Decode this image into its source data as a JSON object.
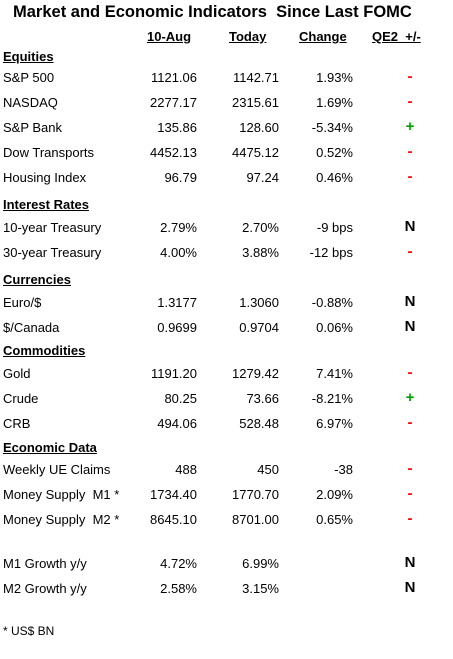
{
  "title": "Market and Economic Indicators  Since Last FOMC",
  "columns": {
    "a": "10-Aug",
    "b": "Today",
    "change": "Change",
    "signal": "QE2  +/-"
  },
  "colors": {
    "negative": "#ff0000",
    "positive": "#00a000",
    "neutral": "#000000"
  },
  "rows": [
    {
      "type": "section",
      "label": "Equities"
    },
    {
      "type": "data",
      "label": "S&P 500",
      "a": "1121.06",
      "b": "1142.71",
      "change": "1.93%",
      "signal": "-"
    },
    {
      "type": "data",
      "label": "NASDAQ",
      "a": "2277.17",
      "b": "2315.61",
      "change": "1.69%",
      "signal": "-"
    },
    {
      "type": "data",
      "label": "S&P Bank",
      "a": "135.86",
      "b": "128.60",
      "change": "-5.34%",
      "signal": "+"
    },
    {
      "type": "data",
      "label": "Dow Transports",
      "a": "4452.13",
      "b": "4475.12",
      "change": "0.52%",
      "signal": "-"
    },
    {
      "type": "data",
      "label": "Housing Index",
      "a": "96.79",
      "b": "97.24",
      "change": "0.46%",
      "signal": "-"
    },
    {
      "type": "section",
      "label": "Interest Rates"
    },
    {
      "type": "data",
      "label": "10-year Treasury",
      "a": "2.79%",
      "b": "2.70%",
      "change": "-9 bps",
      "signal": "N"
    },
    {
      "type": "data",
      "label": "30-year Treasury",
      "a": "4.00%",
      "b": "3.88%",
      "change": "-12 bps",
      "signal": "-"
    },
    {
      "type": "section",
      "label": "Currencies"
    },
    {
      "type": "data",
      "label": "Euro/$",
      "a": "1.3177",
      "b": "1.3060",
      "change": "-0.88%",
      "signal": "N"
    },
    {
      "type": "data",
      "label": "$/Canada",
      "a": "0.9699",
      "b": "0.9704",
      "change": "0.06%",
      "signal": "N"
    },
    {
      "type": "section",
      "label": "Commodities"
    },
    {
      "type": "data",
      "label": "Gold",
      "a": "1191.20",
      "b": "1279.42",
      "change": "7.41%",
      "signal": "-"
    },
    {
      "type": "data",
      "label": "Crude",
      "a": "80.25",
      "b": "73.66",
      "change": "-8.21%",
      "signal": "+"
    },
    {
      "type": "data",
      "label": "CRB",
      "a": "494.06",
      "b": "528.48",
      "change": "6.97%",
      "signal": "-"
    },
    {
      "type": "section",
      "label": "Economic Data"
    },
    {
      "type": "data",
      "label": "Weekly UE Claims",
      "a": "488",
      "b": "450",
      "change": "-38",
      "signal": "-"
    },
    {
      "type": "data",
      "label": "Money Supply  M1 *",
      "a": "1734.40",
      "b": "1770.70",
      "change": "2.09%",
      "signal": "-"
    },
    {
      "type": "data",
      "label": "Money Supply  M2 *",
      "a": "8645.10",
      "b": "8701.00",
      "change": "0.65%",
      "signal": "-"
    },
    {
      "type": "blank"
    },
    {
      "type": "data",
      "label": "M1 Growth y/y",
      "a": "4.72%",
      "b": "6.99%",
      "change": "",
      "signal": "N"
    },
    {
      "type": "data",
      "label": "M2 Growth y/y",
      "a": "2.58%",
      "b": "3.15%",
      "change": "",
      "signal": "N"
    }
  ],
  "footnote": "*  US$ BN"
}
